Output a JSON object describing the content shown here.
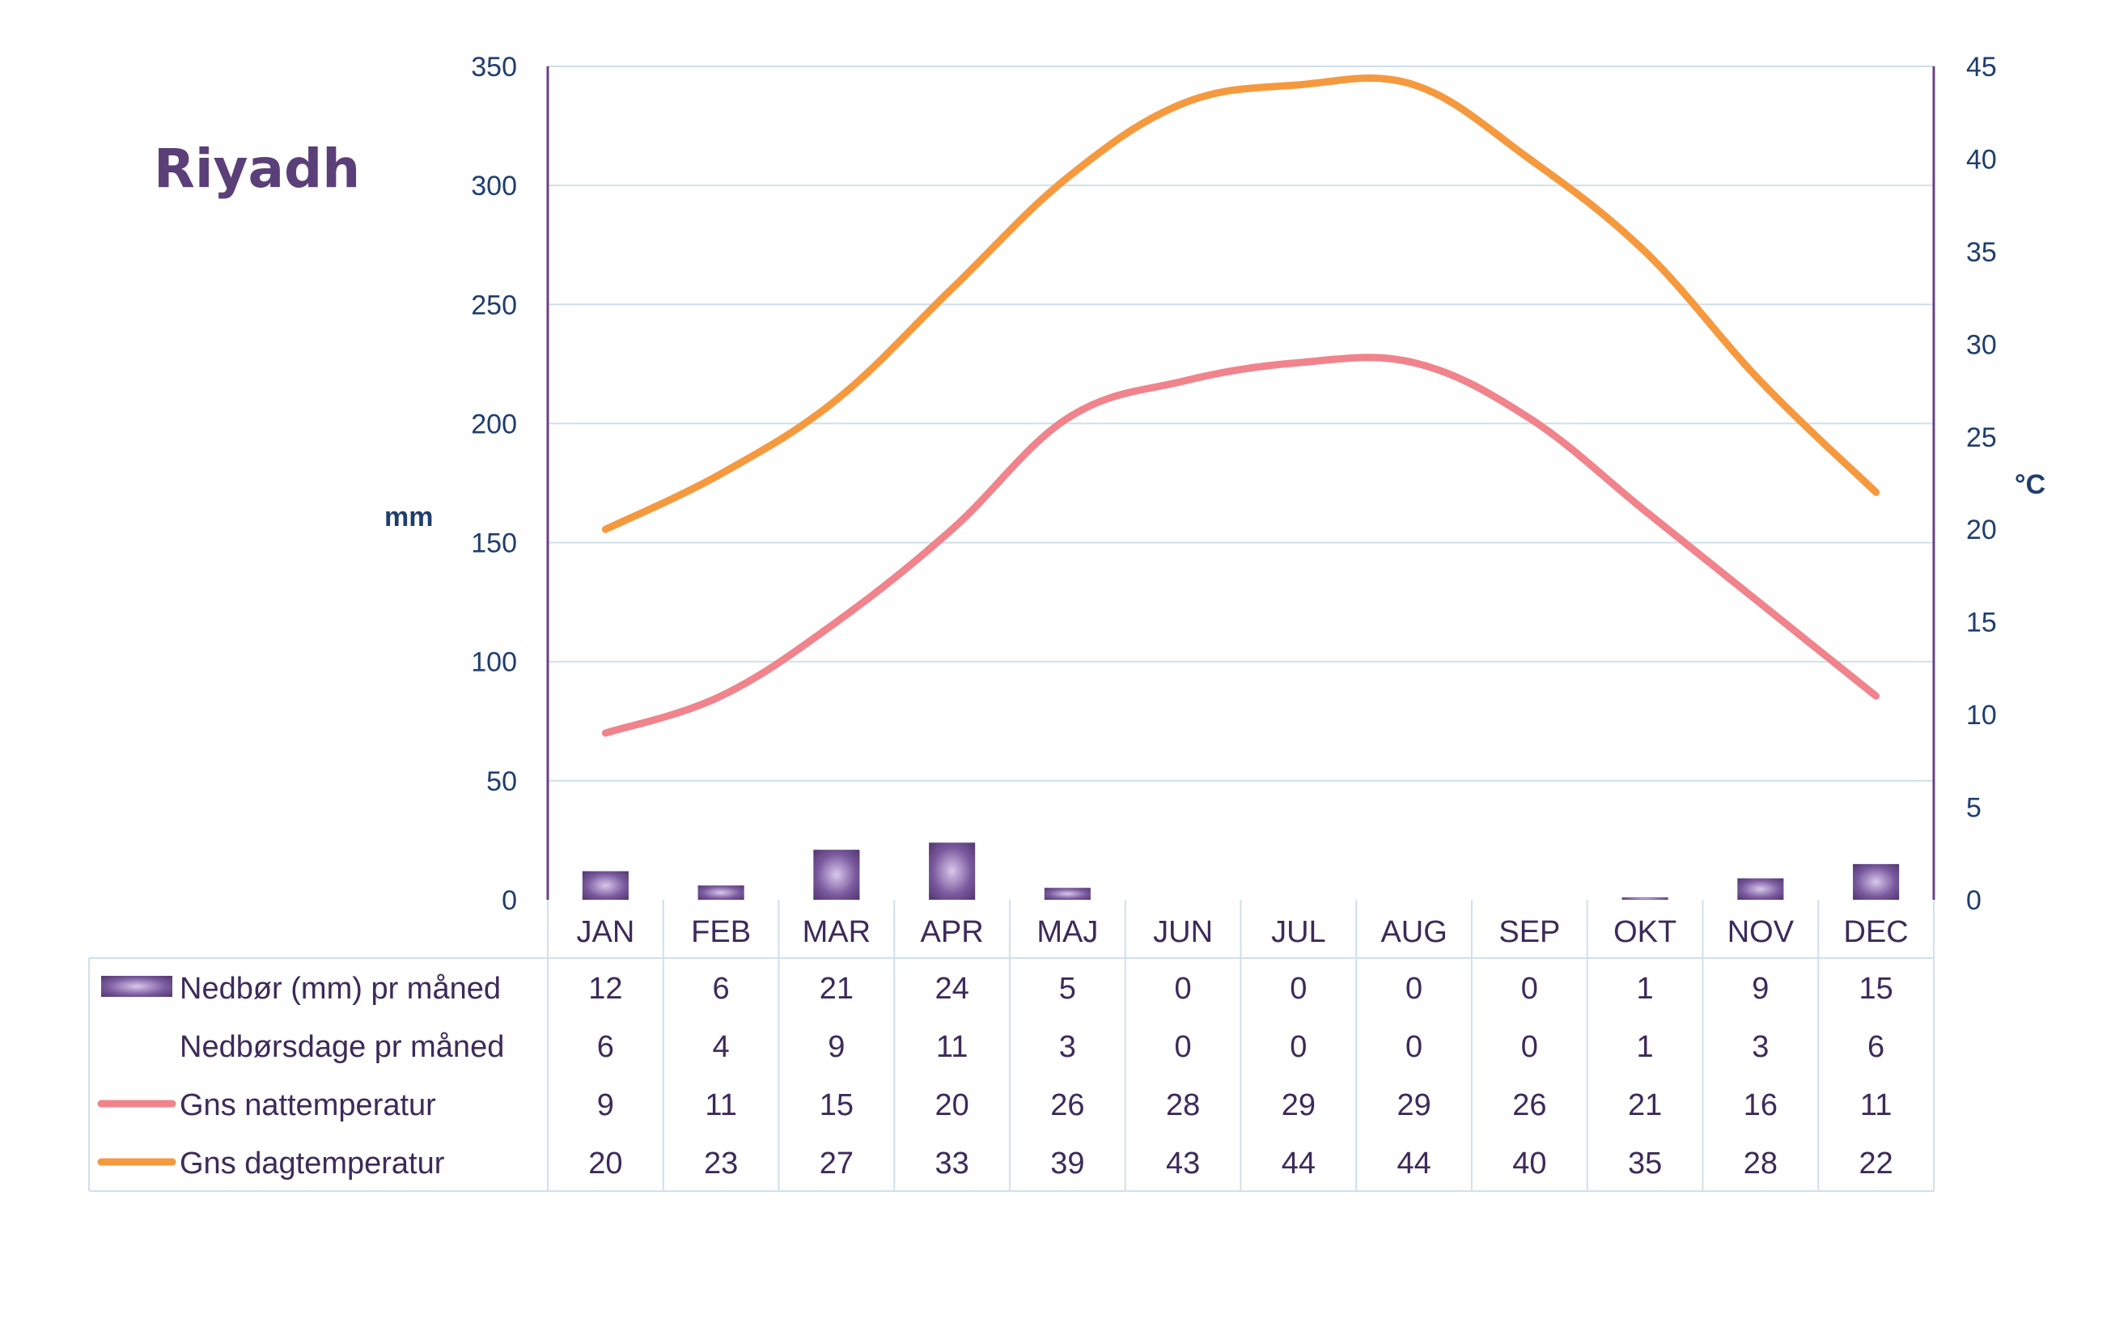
{
  "chart_data": {
    "type": "bar",
    "title": "Riyadh",
    "ylabel_left": "mm",
    "ylabel_right": "°C",
    "categories": [
      "JAN",
      "FEB",
      "MAR",
      "APR",
      "MAJ",
      "JUN",
      "JUL",
      "AUG",
      "SEP",
      "OKT",
      "NOV",
      "DEC"
    ],
    "ylim_left": [
      0,
      350
    ],
    "yticks_left": [
      0,
      50,
      100,
      150,
      200,
      250,
      300,
      350
    ],
    "ylim_right": [
      0,
      45
    ],
    "yticks_right": [
      0,
      5,
      10,
      15,
      20,
      25,
      30,
      35,
      40,
      45
    ],
    "grid": true,
    "series": [
      {
        "name": "Nedbør (mm) pr måned",
        "kind": "bar",
        "axis": "left",
        "color": "#5b3f78",
        "values": [
          12,
          6,
          21,
          24,
          5,
          0,
          0,
          0,
          0,
          1,
          9,
          15
        ]
      },
      {
        "name": "Nedbørsdage pr måned",
        "kind": "table-only",
        "values": [
          6,
          4,
          9,
          11,
          3,
          0,
          0,
          0,
          0,
          1,
          3,
          6
        ]
      },
      {
        "name": "Gns nattemperatur",
        "kind": "line",
        "axis": "right",
        "color": "#f0838b",
        "values": [
          9,
          11,
          15,
          20,
          26,
          28,
          29,
          29,
          26,
          21,
          16,
          11
        ]
      },
      {
        "name": "Gns dagtemperatur",
        "kind": "line",
        "axis": "right",
        "color": "#f5993f",
        "values": [
          20,
          23,
          27,
          33,
          39,
          43,
          44,
          44,
          40,
          35,
          28,
          22
        ]
      }
    ]
  }
}
